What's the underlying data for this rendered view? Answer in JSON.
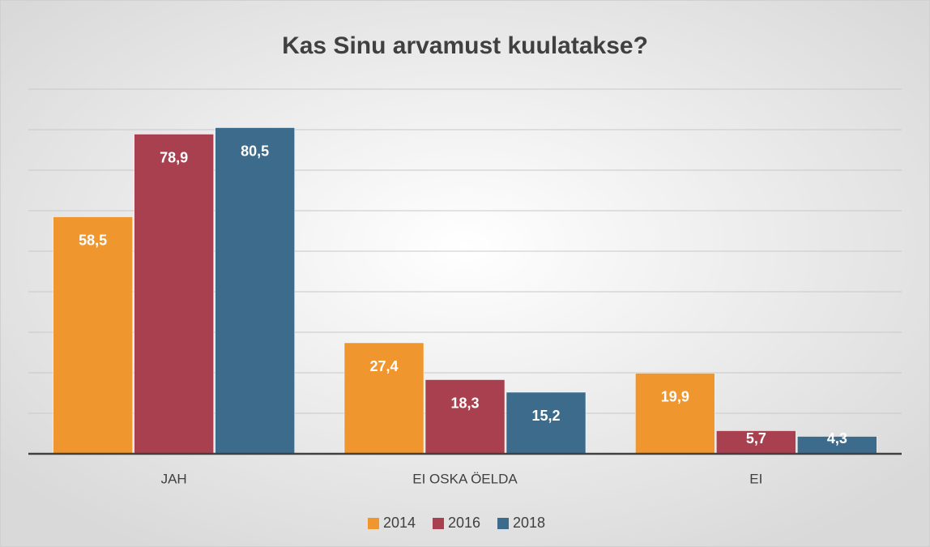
{
  "chart_data": {
    "type": "bar",
    "title": "Kas Sinu arvamust kuulatakse?",
    "categories": [
      "JAH",
      "EI OSKA ÖELDA",
      "EI"
    ],
    "series": [
      {
        "name": "2014",
        "color": "#f0962e",
        "values": [
          58.5,
          27.4,
          19.9
        ],
        "value_labels": [
          "58,5",
          "27,4",
          "19,9"
        ]
      },
      {
        "name": "2016",
        "color": "#a8404f",
        "values": [
          78.9,
          18.3,
          5.7
        ],
        "value_labels": [
          "78,9",
          "18,3",
          "5,7"
        ]
      },
      {
        "name": "2018",
        "color": "#3d6b8b",
        "values": [
          80.5,
          15.2,
          4.3
        ],
        "value_labels": [
          "80,5",
          "15,2",
          "4,3"
        ]
      }
    ],
    "ylim": [
      0,
      90
    ],
    "yticks": [
      0,
      10,
      20,
      30,
      40,
      50,
      60,
      70,
      80,
      90
    ],
    "grid": true,
    "legend": "bottom"
  }
}
